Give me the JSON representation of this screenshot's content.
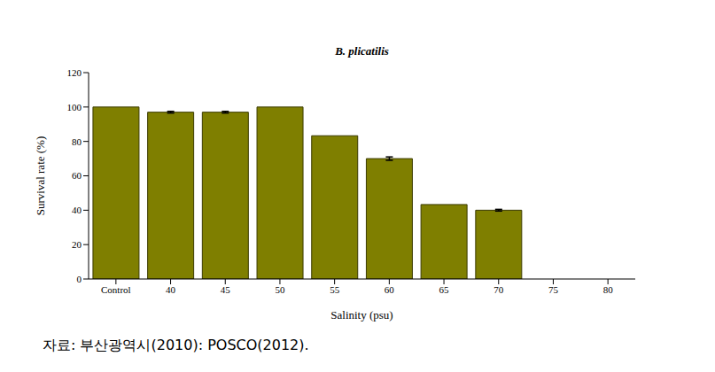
{
  "chart_data": {
    "type": "bar",
    "title": "B. plicatilis",
    "x_label": "Salinity (psu)",
    "y_label": "Survival rate (%)",
    "categories": [
      "Control",
      "40",
      "45",
      "50",
      "55",
      "60",
      "65",
      "70",
      "75",
      "80"
    ],
    "values": [
      100,
      97,
      97,
      100,
      83.3,
      70,
      43.3,
      40,
      0,
      0
    ],
    "errors": [
      0,
      0.5,
      0.5,
      0,
      0,
      1,
      0,
      0.5,
      0,
      0
    ],
    "color": "#7f7f00",
    "ylim": [
      0,
      120
    ],
    "yticks": [
      0,
      20,
      40,
      60,
      80,
      100,
      120
    ],
    "grid": false,
    "annotation": "자료: 부산광역시(2010): POSCO(2012)."
  }
}
